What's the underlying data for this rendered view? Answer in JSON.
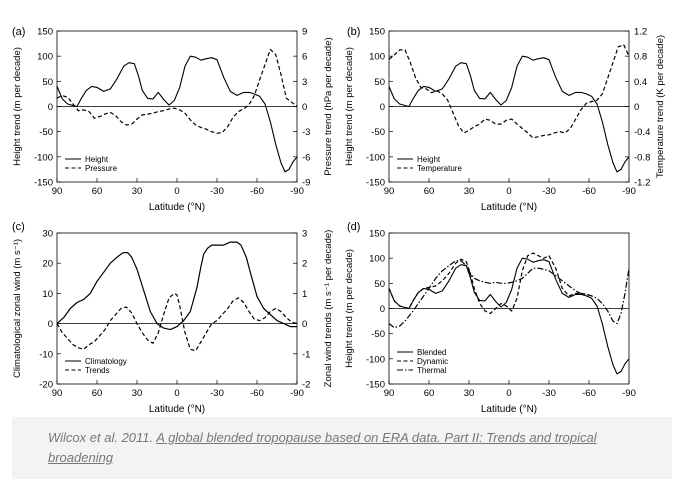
{
  "caption": {
    "prefix": "Wilcox et al. 2011. ",
    "link_text": "A global blended tropopause based on ERA data. Part II: Trends and tropical broadening"
  },
  "chart_data": [
    {
      "panel": "(a)",
      "type": "line",
      "xlabel": "Latitude (°N)",
      "ylabel": "Height trend (m per decade)",
      "y2label": "Pressure trend (hPa per decade)",
      "xlim": [
        90,
        -90
      ],
      "ylim": [
        -150,
        150
      ],
      "y2lim": [
        -9,
        9
      ],
      "xticks": [
        90,
        60,
        30,
        0,
        -30,
        -60,
        -90
      ],
      "yticks": [
        150,
        100,
        50,
        0,
        -50,
        -100,
        -150
      ],
      "y2ticks": [
        9,
        6,
        3,
        0,
        -3,
        -6,
        -9
      ],
      "legend": "bottom-left",
      "series": [
        {
          "name": "Height",
          "axis": "left",
          "style": "solid",
          "x": [
            90,
            86,
            82,
            78,
            75,
            72,
            68,
            64,
            60,
            55,
            50,
            45,
            40,
            36,
            32,
            29,
            26,
            22,
            18,
            14,
            10,
            6,
            2,
            -2,
            -6,
            -10,
            -14,
            -18,
            -22,
            -26,
            -30,
            -35,
            -40,
            -45,
            -50,
            -54,
            -58,
            -62,
            -66,
            -70,
            -74,
            -78,
            -81,
            -84,
            -87,
            -90
          ],
          "y": [
            40,
            15,
            5,
            2,
            0,
            15,
            32,
            40,
            38,
            30,
            35,
            55,
            80,
            87,
            85,
            62,
            32,
            16,
            15,
            28,
            14,
            3,
            12,
            38,
            80,
            100,
            98,
            92,
            95,
            97,
            93,
            58,
            30,
            22,
            28,
            28,
            25,
            20,
            5,
            -30,
            -75,
            -112,
            -130,
            -125,
            -110,
            -100
          ]
        },
        {
          "name": "Pressure",
          "axis": "right",
          "style": "dashed",
          "x": [
            90,
            86,
            82,
            78,
            74,
            70,
            66,
            62,
            58,
            54,
            50,
            46,
            42,
            38,
            34,
            30,
            26,
            22,
            18,
            14,
            10,
            6,
            2,
            -2,
            -6,
            -10,
            -14,
            -18,
            -22,
            -26,
            -30,
            -34,
            -38,
            -42,
            -46,
            -50,
            -54,
            -58,
            -62,
            -66,
            -70,
            -74,
            -78,
            -82,
            -86,
            -90
          ],
          "y": [
            1.0,
            1.3,
            1.1,
            0.3,
            -0.5,
            -0.4,
            -0.6,
            -1.4,
            -1.2,
            -0.9,
            -0.7,
            -1.1,
            -1.8,
            -2.2,
            -2.1,
            -1.5,
            -1.0,
            -0.9,
            -0.8,
            -0.6,
            -0.5,
            -0.3,
            -0.2,
            -0.4,
            -0.8,
            -1.6,
            -2.2,
            -2.5,
            -2.7,
            -3.0,
            -3.2,
            -3.1,
            -2.4,
            -1.3,
            -0.6,
            -0.3,
            0.2,
            1.3,
            3.2,
            5.0,
            6.8,
            6.2,
            3.8,
            1.0,
            0.5,
            0.0
          ]
        }
      ]
    },
    {
      "panel": "(b)",
      "type": "line",
      "xlabel": "Latitude (°N)",
      "ylabel": "Height trend (m per decade)",
      "y2label": "Temperature trend (K per decade)",
      "xlim": [
        90,
        -90
      ],
      "ylim": [
        -150,
        150
      ],
      "y2lim": [
        -1.2,
        1.2
      ],
      "xticks": [
        90,
        60,
        30,
        0,
        -30,
        -60,
        -90
      ],
      "yticks": [
        150,
        100,
        50,
        0,
        -50,
        -100,
        -150
      ],
      "y2ticks": [
        1.2,
        0.8,
        0.4,
        0,
        -0.4,
        -0.8,
        -1.2
      ],
      "legend": "bottom-left",
      "series": [
        {
          "name": "Height",
          "axis": "left",
          "style": "solid",
          "x": [
            90,
            86,
            82,
            78,
            75,
            72,
            68,
            64,
            60,
            55,
            50,
            45,
            40,
            36,
            32,
            29,
            26,
            22,
            18,
            14,
            10,
            6,
            2,
            -2,
            -6,
            -10,
            -14,
            -18,
            -22,
            -26,
            -30,
            -35,
            -40,
            -45,
            -50,
            -54,
            -58,
            -62,
            -66,
            -70,
            -74,
            -78,
            -81,
            -84,
            -87,
            -90
          ],
          "y": [
            40,
            15,
            5,
            2,
            0,
            15,
            32,
            40,
            38,
            30,
            35,
            55,
            80,
            87,
            85,
            62,
            32,
            16,
            15,
            28,
            14,
            3,
            12,
            38,
            80,
            100,
            98,
            92,
            95,
            97,
            93,
            58,
            30,
            22,
            28,
            28,
            25,
            20,
            5,
            -30,
            -75,
            -112,
            -130,
            -125,
            -110,
            -100
          ]
        },
        {
          "name": "Temperature",
          "axis": "right",
          "style": "dashed",
          "x": [
            90,
            86,
            82,
            78,
            74,
            70,
            66,
            62,
            58,
            54,
            50,
            46,
            42,
            38,
            34,
            30,
            26,
            22,
            18,
            14,
            10,
            6,
            2,
            -2,
            -6,
            -10,
            -14,
            -18,
            -22,
            -26,
            -30,
            -34,
            -38,
            -42,
            -46,
            -50,
            -54,
            -58,
            -62,
            -66,
            -70,
            -74,
            -78,
            -82,
            -86,
            -90
          ],
          "y": [
            0.75,
            0.82,
            0.9,
            0.9,
            0.7,
            0.45,
            0.3,
            0.28,
            0.22,
            0.25,
            0.2,
            0.1,
            -0.1,
            -0.3,
            -0.42,
            -0.38,
            -0.32,
            -0.28,
            -0.2,
            -0.22,
            -0.28,
            -0.28,
            -0.22,
            -0.2,
            -0.28,
            -0.35,
            -0.42,
            -0.5,
            -0.48,
            -0.46,
            -0.45,
            -0.42,
            -0.4,
            -0.42,
            -0.35,
            -0.2,
            -0.05,
            0.05,
            0.08,
            0.1,
            0.2,
            0.45,
            0.7,
            0.95,
            0.98,
            0.8
          ]
        }
      ]
    },
    {
      "panel": "(c)",
      "type": "line",
      "xlabel": "Latitude (°N)",
      "ylabel": "Climatological zonal wind (m s⁻¹)",
      "y2label": "Zonal wind trends (m s⁻¹ per decade)",
      "xlim": [
        90,
        -90
      ],
      "ylim": [
        -20,
        30
      ],
      "y2lim": [
        -2,
        3
      ],
      "xticks": [
        90,
        60,
        30,
        0,
        -30,
        -60,
        -90
      ],
      "yticks": [
        30,
        20,
        10,
        0,
        -10,
        -20
      ],
      "y2ticks": [
        3,
        2,
        1,
        0,
        -1,
        -2
      ],
      "legend": "bottom-left",
      "series": [
        {
          "name": "Climatology",
          "axis": "left",
          "style": "solid",
          "x": [
            90,
            85,
            80,
            75,
            70,
            65,
            60,
            55,
            50,
            45,
            42,
            40,
            37,
            34,
            30,
            25,
            20,
            15,
            10,
            5,
            0,
            -5,
            -10,
            -15,
            -18,
            -20,
            -23,
            -26,
            -30,
            -35,
            -40,
            -45,
            -48,
            -52,
            -55,
            -60,
            -65,
            -70,
            -75,
            -80,
            -85,
            -90
          ],
          "y": [
            0,
            2,
            5,
            7,
            8,
            10,
            14,
            17,
            20,
            22,
            23,
            23.5,
            23.5,
            22,
            18,
            11,
            4,
            0,
            -1.5,
            -2,
            -1,
            1,
            4,
            12,
            19,
            23,
            25,
            26,
            26,
            26,
            27,
            27,
            26,
            22,
            17,
            9,
            5,
            3,
            1,
            0,
            -1,
            -1
          ]
        },
        {
          "name": "Trends",
          "axis": "right",
          "style": "dashed",
          "x": [
            90,
            86,
            82,
            78,
            74,
            70,
            66,
            62,
            58,
            54,
            50,
            46,
            42,
            38,
            34,
            30,
            26,
            22,
            18,
            14,
            10,
            6,
            2,
            0,
            -2,
            -6,
            -10,
            -14,
            -18,
            -22,
            -26,
            -30,
            -34,
            -38,
            -42,
            -46,
            -50,
            -54,
            -58,
            -62,
            -66,
            -70,
            -74,
            -78,
            -82,
            -86,
            -90
          ],
          "y": [
            0,
            -0.3,
            -0.5,
            -0.7,
            -0.8,
            -0.85,
            -0.7,
            -0.6,
            -0.4,
            -0.2,
            0.1,
            0.3,
            0.5,
            0.55,
            0.35,
            0.0,
            -0.3,
            -0.55,
            -0.65,
            -0.3,
            0.3,
            0.85,
            1.0,
            0.95,
            0.6,
            -0.3,
            -0.85,
            -0.9,
            -0.6,
            -0.3,
            0.0,
            0.1,
            0.3,
            0.5,
            0.75,
            0.85,
            0.7,
            0.4,
            0.15,
            0.1,
            0.2,
            0.4,
            0.5,
            0.4,
            0.2,
            0.05,
            0.0
          ]
        }
      ]
    },
    {
      "panel": "(d)",
      "type": "line",
      "xlabel": "Latitude (°N)",
      "ylabel": "Height trend (m per decade)",
      "xlim": [
        90,
        -90
      ],
      "ylim": [
        -150,
        150
      ],
      "xticks": [
        90,
        60,
        30,
        0,
        -30,
        -60,
        -90
      ],
      "yticks": [
        150,
        100,
        50,
        0,
        -50,
        -100,
        -150
      ],
      "legend": "bottom-left",
      "series": [
        {
          "name": "Blended",
          "style": "solid",
          "x": [
            90,
            86,
            82,
            78,
            75,
            72,
            68,
            64,
            60,
            55,
            50,
            45,
            40,
            36,
            32,
            29,
            26,
            22,
            18,
            14,
            10,
            6,
            2,
            -2,
            -6,
            -10,
            -14,
            -18,
            -22,
            -26,
            -30,
            -35,
            -40,
            -45,
            -50,
            -54,
            -58,
            -62,
            -66,
            -70,
            -74,
            -78,
            -81,
            -84,
            -87,
            -90
          ],
          "y": [
            40,
            15,
            5,
            2,
            0,
            15,
            32,
            40,
            38,
            30,
            35,
            55,
            80,
            87,
            85,
            62,
            32,
            16,
            15,
            28,
            14,
            3,
            12,
            38,
            80,
            100,
            98,
            92,
            95,
            97,
            93,
            58,
            30,
            22,
            28,
            28,
            25,
            20,
            5,
            -30,
            -75,
            -112,
            -130,
            -125,
            -110,
            -100
          ]
        },
        {
          "name": "Dynamic",
          "style": "dashed",
          "x": [
            90,
            86,
            82,
            78,
            75,
            72,
            68,
            64,
            60,
            55,
            50,
            45,
            40,
            36,
            32,
            29,
            26,
            22,
            18,
            14,
            10,
            6,
            2,
            -2,
            -6,
            -10,
            -14,
            -18,
            -22,
            -26,
            -30,
            -35,
            -40,
            -45,
            -50,
            -54,
            -58,
            -62
          ],
          "y": [
            40,
            15,
            5,
            2,
            0,
            15,
            32,
            40,
            42,
            45,
            55,
            70,
            90,
            98,
            93,
            70,
            40,
            10,
            -5,
            -10,
            0,
            10,
            5,
            -5,
            20,
            75,
            105,
            110,
            105,
            100,
            105,
            80,
            40,
            25,
            30,
            30,
            28,
            25
          ]
        },
        {
          "name": "Thermal",
          "style": "dash-dot",
          "x": [
            90,
            86,
            82,
            78,
            75,
            72,
            68,
            64,
            60,
            55,
            50,
            45,
            40,
            36,
            32,
            29,
            26,
            22,
            18,
            14,
            10,
            6,
            2,
            -2,
            -6,
            -10,
            -14,
            -18,
            -22,
            -26,
            -30,
            -35,
            -40,
            -45,
            -50,
            -54,
            -58,
            -62,
            -66,
            -70,
            -74,
            -78,
            -81,
            -84,
            -87,
            -90
          ],
          "y": [
            -30,
            -38,
            -35,
            -25,
            -15,
            -5,
            10,
            25,
            40,
            60,
            75,
            85,
            95,
            95,
            85,
            70,
            60,
            55,
            52,
            50,
            52,
            50,
            50,
            52,
            55,
            60,
            70,
            80,
            80,
            78,
            75,
            65,
            55,
            45,
            35,
            30,
            28,
            25,
            20,
            10,
            -5,
            -25,
            -30,
            -10,
            30,
            80
          ]
        }
      ]
    }
  ]
}
